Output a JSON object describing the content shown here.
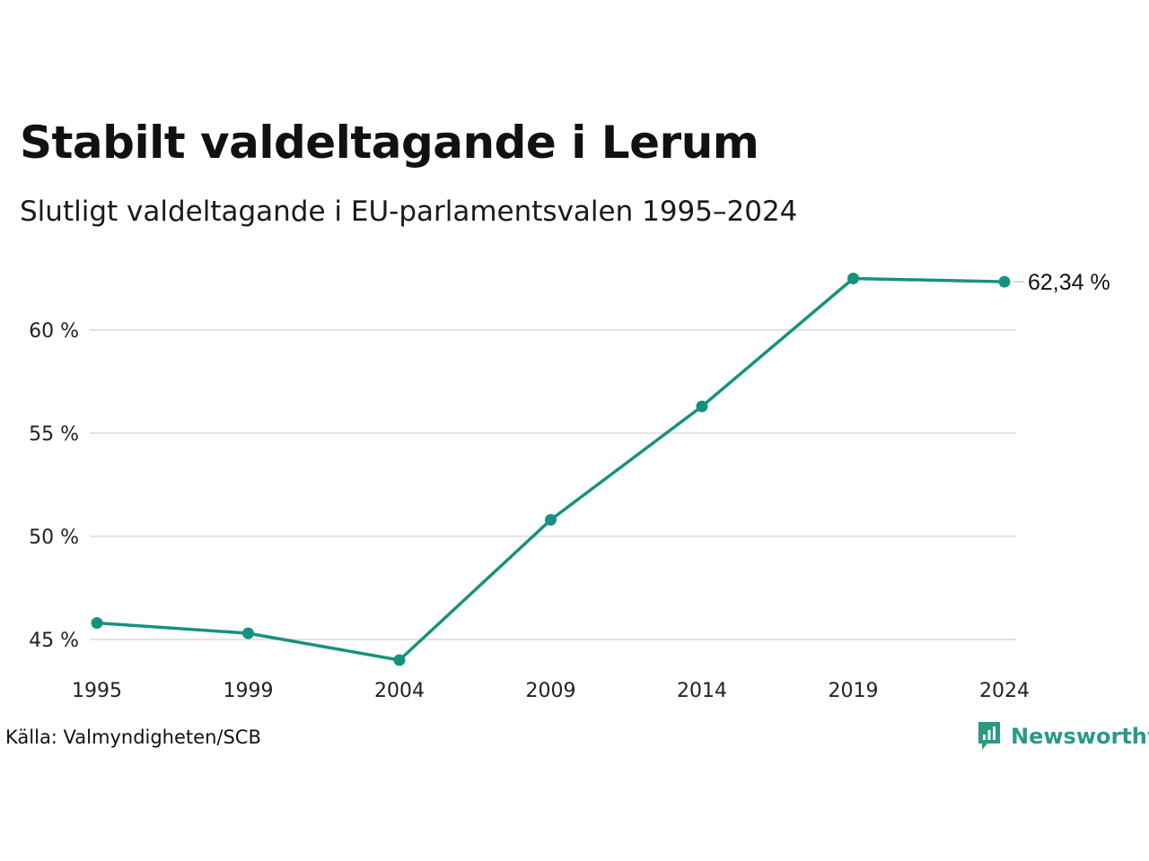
{
  "title": "Stabilt valdeltagande i Lerum",
  "subtitle": "Slutligt valdeltagande i EU-parlamentsvalen 1995–2024",
  "source": "Källa: Valmyndigheten/SCB",
  "brand": {
    "name": "Newsworthy",
    "icon": "newsworthy-logo-icon"
  },
  "colors": {
    "line": "#17917f",
    "grid": "#e3e3e3",
    "brand": "#2a9985"
  },
  "chart_data": {
    "type": "line",
    "title": "Stabilt valdeltagande i Lerum",
    "subtitle": "Slutligt valdeltagande i EU-parlamentsvalen 1995–2024",
    "xlabel": "",
    "ylabel": "",
    "x": [
      "1995",
      "1999",
      "2004",
      "2009",
      "2014",
      "2019",
      "2024"
    ],
    "series": [
      {
        "name": "",
        "values": [
          45.8,
          45.3,
          44.0,
          50.8,
          56.3,
          62.5,
          62.34
        ]
      }
    ],
    "ylim": [
      43.5,
      63.5
    ],
    "yticks": [
      45,
      50,
      55,
      60
    ],
    "ytick_labels": [
      "45 %",
      "50 %",
      "55 %",
      "60 %"
    ],
    "end_label": "62,34 %",
    "grid": true,
    "legend": "none"
  }
}
